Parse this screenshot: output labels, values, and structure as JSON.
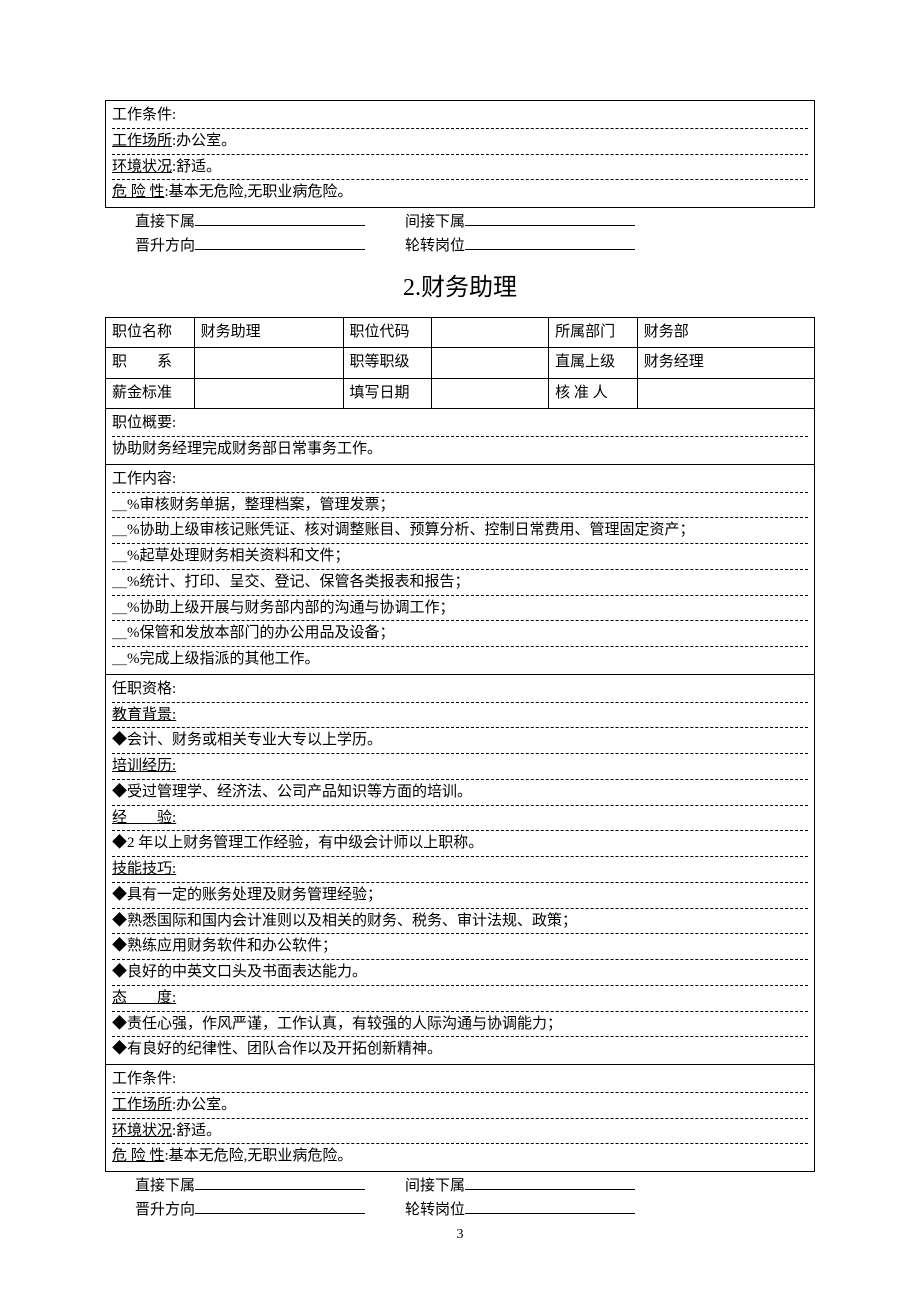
{
  "topBox": {
    "line1": "工作条件:",
    "line2_label": "工作场所",
    "line2_value": ":办公室。",
    "line3_label": "环境状况",
    "line3_value": ":舒适。",
    "line4_label": "危 险 性",
    "line4_value": ":基本无危险,无职业病危险。"
  },
  "fills1": {
    "a": "直接下属",
    "b": "间接下属",
    "c": "晋升方向",
    "d": "轮转岗位"
  },
  "title": "2.财务助理",
  "headerTable": {
    "r1c1": "职位名称",
    "r1c2": "财务助理",
    "r1c3": "职位代码",
    "r1c4": "",
    "r1c5": "所属部门",
    "r1c6": "财务部",
    "r2c1": "职　　系",
    "r2c2": "",
    "r2c3": "职等职级",
    "r2c4": "",
    "r2c5": "直属上级",
    "r2c6": "财务经理",
    "r3c1": "薪金标准",
    "r3c2": "",
    "r3c3": "填写日期",
    "r3c4": "",
    "r3c5": "核 准 人",
    "r3c6": ""
  },
  "summaryBox": {
    "label": "职位概要:",
    "text": "协助财务经理完成财务部日常事务工作。"
  },
  "contentBox": {
    "label": "工作内容:",
    "items": [
      "＿%审核财务单据，整理档案，管理发票；",
      "＿%协助上级审核记账凭证、核对调整账目、预算分析、控制日常费用、管理固定资产；",
      "＿%起草处理财务相关资料和文件；",
      "＿%统计、打印、呈交、登记、保管各类报表和报告；",
      "＿%协助上级开展与财务部内部的沟通与协调工作；",
      "＿%保管和发放本部门的办公用品及设备；",
      "＿%完成上级指派的其他工作。"
    ]
  },
  "qualBox": {
    "label": "任职资格:",
    "sections": [
      {
        "heading": "教育背景:",
        "lines": [
          "◆会计、财务或相关专业大专以上学历。"
        ]
      },
      {
        "heading": "培训经历:",
        "lines": [
          "◆受过管理学、经济法、公司产品知识等方面的培训。"
        ]
      },
      {
        "heading": "经　　验:",
        "lines": [
          "◆2 年以上财务管理工作经验，有中级会计师以上职称。"
        ]
      },
      {
        "heading": "技能技巧:",
        "lines": [
          "◆具有一定的账务处理及财务管理经验；",
          "◆熟悉国际和国内会计准则以及相关的财务、税务、审计法规、政策；",
          "◆熟练应用财务软件和办公软件；",
          "◆良好的中英文口头及书面表达能力。"
        ]
      },
      {
        "heading": "态　　度:",
        "lines": [
          "◆责任心强，作风严谨，工作认真，有较强的人际沟通与协调能力；",
          "◆有良好的纪律性、团队合作以及开拓创新精神。"
        ]
      }
    ]
  },
  "condBox": {
    "line1": "工作条件:",
    "line2_label": "工作场所",
    "line2_value": ":办公室。",
    "line3_label": "环境状况",
    "line3_value": ":舒适。",
    "line4_label": "危 险 性",
    "line4_value": ":基本无危险,无职业病危险。"
  },
  "fills2": {
    "a": "直接下属",
    "b": "间接下属",
    "c": "晋升方向",
    "d": "轮转岗位"
  },
  "pageNumber": "3"
}
